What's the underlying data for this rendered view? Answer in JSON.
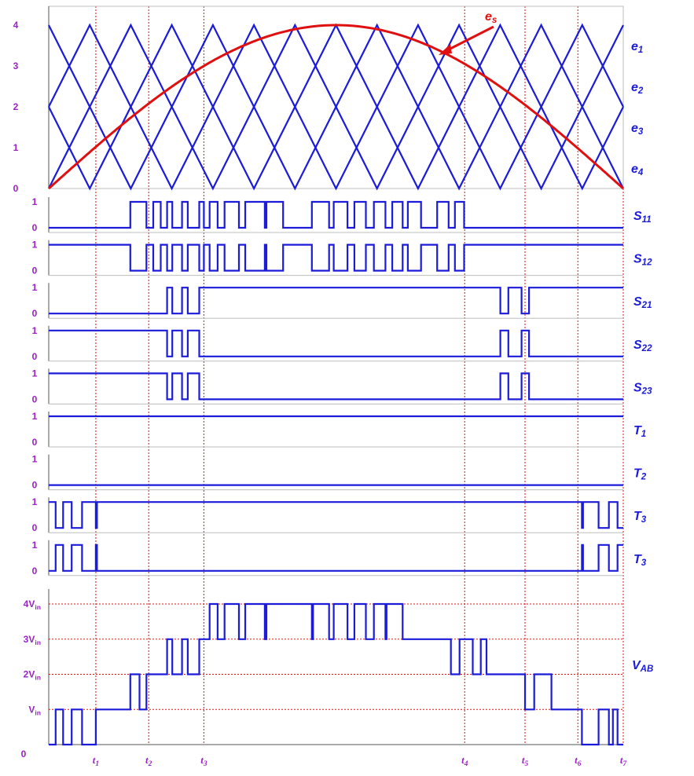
{
  "chart_data": [
    {
      "type": "line",
      "panel": "carriers",
      "y_ticks": [
        "0",
        "1",
        "2",
        "3",
        "4"
      ],
      "ylim": [
        0,
        4
      ],
      "xlim": [
        0,
        1
      ],
      "carrier_periods": 14,
      "carriers": [
        {
          "name": "e1",
          "band": [
            3,
            4
          ]
        },
        {
          "name": "e2",
          "band": [
            2,
            3
          ]
        },
        {
          "name": "e3",
          "band": [
            1,
            2
          ]
        },
        {
          "name": "e4",
          "band": [
            0,
            1
          ]
        }
      ],
      "reference": {
        "name": "es",
        "peak": 4,
        "shape": "half-sine"
      },
      "colors": {
        "carrier": "#1b1bd9",
        "reference": "#e01010"
      }
    },
    {
      "type": "line",
      "panel": "switching-signals",
      "levels": [
        "1",
        "0"
      ],
      "signals": [
        {
          "label": "S",
          "sub": "11",
          "edges": [
            0.142,
            0.17,
            0.182,
            0.195,
            0.206,
            0.215,
            0.232,
            0.242,
            0.262,
            0.27,
            0.28,
            0.294,
            0.306,
            0.331,
            0.342,
            0.376,
            0.379,
            0.408,
            0.458,
            0.488,
            0.496,
            0.52,
            0.532,
            0.552,
            0.566,
            0.586,
            0.598,
            0.616,
            0.625,
            0.648,
            0.676,
            0.696,
            0.707,
            0.723
          ]
        },
        {
          "label": "S",
          "sub": "12",
          "edges": [
            0.142,
            0.17,
            0.182,
            0.195,
            0.206,
            0.215,
            0.232,
            0.242,
            0.262,
            0.27,
            0.28,
            0.294,
            0.306,
            0.331,
            0.342,
            0.376,
            0.379,
            0.408,
            0.458,
            0.488,
            0.496,
            0.52,
            0.532,
            0.552,
            0.566,
            0.586,
            0.598,
            0.616,
            0.625,
            0.648,
            0.676,
            0.696,
            0.707,
            0.723
          ],
          "initial": 1
        },
        {
          "label": "S",
          "sub": "21",
          "edges": [
            0.206,
            0.215,
            0.232,
            0.242,
            0.262,
            0.786,
            0.8,
            0.823,
            0.836
          ],
          "initial": 0
        },
        {
          "label": "S",
          "sub": "22",
          "edges": [
            0.206,
            0.215,
            0.232,
            0.242,
            0.262,
            0.786,
            0.8,
            0.823,
            0.836
          ],
          "initial": 1
        },
        {
          "label": "S",
          "sub": "23",
          "edges": [
            0.206,
            0.215,
            0.232,
            0.242,
            0.262,
            0.786,
            0.8,
            0.823,
            0.836
          ],
          "initial": 1
        },
        {
          "label": "T",
          "sub": "1",
          "edges": [],
          "initial": 1
        },
        {
          "label": "T",
          "sub": "2",
          "edges": [],
          "initial": 0
        },
        {
          "label": "T",
          "sub": "3",
          "edges": [
            0.012,
            0.025,
            0.04,
            0.058,
            0.082,
            0.084,
            0.928,
            0.93,
            0.957,
            0.975,
            0.99
          ],
          "initial": 1
        },
        {
          "label": "T",
          "sub": "3",
          "edges": [
            0.012,
            0.025,
            0.04,
            0.058,
            0.082,
            0.084,
            0.928,
            0.93,
            0.957,
            0.975,
            0.99
          ],
          "initial": 0
        }
      ],
      "color": "#1b1bd9"
    },
    {
      "type": "line",
      "panel": "output-voltage",
      "series_label": {
        "main": "V",
        "sub": "AB"
      },
      "y_ticks": [
        {
          "value": 0,
          "main": "0",
          "sub": ""
        },
        {
          "value": 1,
          "main": "V",
          "sub": "in"
        },
        {
          "value": 2,
          "main": "2V",
          "sub": "in"
        },
        {
          "value": 3,
          "main": "3V",
          "sub": "in"
        },
        {
          "value": 4,
          "main": "4V",
          "sub": "in"
        }
      ],
      "ylim": [
        0,
        4
      ],
      "x_ticks": [
        {
          "main": "t",
          "sub": "1",
          "x": 0.082
        },
        {
          "main": "t",
          "sub": "2",
          "x": 0.174
        },
        {
          "main": "t",
          "sub": "3",
          "x": 0.27
        },
        {
          "main": "t",
          "sub": "4",
          "x": 0.724
        },
        {
          "main": "t",
          "sub": "5",
          "x": 0.829
        },
        {
          "main": "t",
          "sub": "6",
          "x": 0.921
        },
        {
          "main": "t",
          "sub": "7",
          "x": 1.0
        }
      ],
      "steps": [
        [
          0.0,
          0
        ],
        [
          0.012,
          1
        ],
        [
          0.025,
          0
        ],
        [
          0.04,
          1
        ],
        [
          0.058,
          0
        ],
        [
          0.082,
          1
        ],
        [
          0.142,
          2
        ],
        [
          0.158,
          1
        ],
        [
          0.17,
          2
        ],
        [
          0.206,
          3
        ],
        [
          0.215,
          2
        ],
        [
          0.232,
          3
        ],
        [
          0.242,
          2
        ],
        [
          0.262,
          3
        ],
        [
          0.28,
          4
        ],
        [
          0.294,
          3
        ],
        [
          0.306,
          4
        ],
        [
          0.331,
          3
        ],
        [
          0.342,
          4
        ],
        [
          0.376,
          3
        ],
        [
          0.379,
          4
        ],
        [
          0.408,
          4
        ],
        [
          0.458,
          3
        ],
        [
          0.46,
          4
        ],
        [
          0.488,
          3
        ],
        [
          0.496,
          4
        ],
        [
          0.52,
          3
        ],
        [
          0.532,
          4
        ],
        [
          0.552,
          3
        ],
        [
          0.566,
          4
        ],
        [
          0.586,
          3
        ],
        [
          0.588,
          4
        ],
        [
          0.616,
          3
        ],
        [
          0.7,
          2
        ],
        [
          0.715,
          3
        ],
        [
          0.738,
          2
        ],
        [
          0.752,
          3
        ],
        [
          0.762,
          2
        ],
        [
          0.829,
          1
        ],
        [
          0.845,
          2
        ],
        [
          0.875,
          1
        ],
        [
          0.9,
          1
        ],
        [
          0.928,
          0
        ],
        [
          0.957,
          1
        ],
        [
          0.975,
          0
        ],
        [
          0.982,
          1
        ],
        [
          0.99,
          0
        ],
        [
          1.0,
          0
        ]
      ],
      "color": "#1b1bd9",
      "grid_color": "#e01010"
    }
  ],
  "colors": {
    "axis_label": "#9a22c6",
    "signal_label": "#1b1bd9",
    "reference_label": "#e01010"
  },
  "labels": {
    "es_main": "e",
    "es_sub": "s"
  }
}
